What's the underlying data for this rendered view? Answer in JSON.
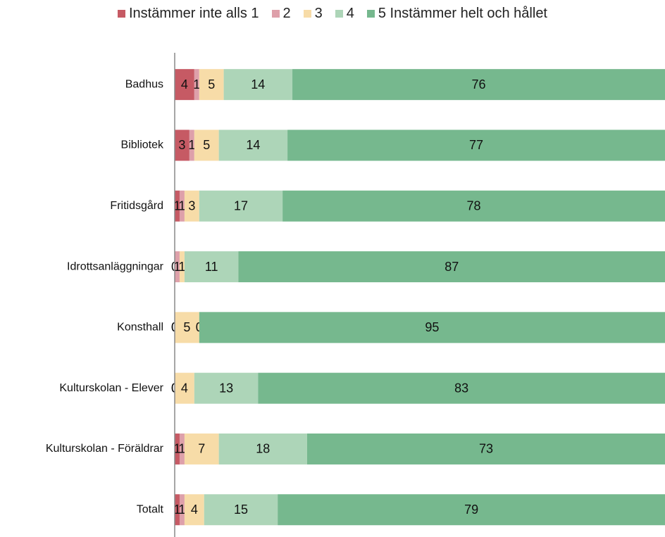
{
  "chart_data": {
    "type": "stacked_bar_horizontal",
    "categories": [
      "Badhus",
      "Bibliotek",
      "Fritidsgård",
      "Idrottsanläggningar",
      "Konsthall",
      "Kulturskolan - Elever",
      "Kulturskolan - Föräldrar",
      "Totalt"
    ],
    "series": [
      {
        "name": "Instämmer inte alls 1",
        "color": "#c65a64",
        "values": [
          4,
          3,
          1,
          0,
          0,
          0,
          1,
          1
        ]
      },
      {
        "name": "2",
        "color": "#dea0aa",
        "values": [
          1,
          1,
          1,
          1,
          0,
          0,
          1,
          1
        ]
      },
      {
        "name": "3",
        "color": "#f7dca8",
        "values": [
          5,
          5,
          3,
          1,
          5,
          4,
          7,
          4
        ]
      },
      {
        "name": "4",
        "color": "#add5b8",
        "values": [
          14,
          14,
          17,
          11,
          0,
          13,
          18,
          15
        ]
      },
      {
        "name": "5 Instämmer helt och hållet",
        "color": "#76b88e",
        "values": [
          76,
          77,
          78,
          87,
          95,
          83,
          73,
          79
        ]
      }
    ],
    "xlim": [
      0,
      100
    ]
  }
}
